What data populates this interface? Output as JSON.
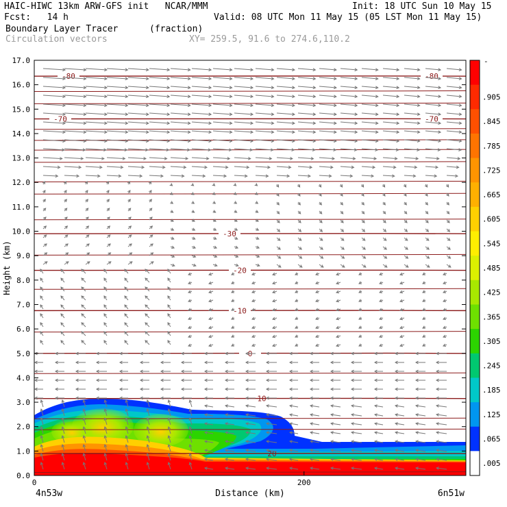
{
  "header": {
    "line1_left": "HAIC-HIWC 13km ARW-GFS init   NCAR/MMM",
    "line1_right": "Init: 18 UTC Sun 10 May 15",
    "line2_left": "Fcst:   14 h",
    "line2_right": "Valid: 08 UTC Mon 11 May 15 (05 LST Mon 11 May 15)",
    "line3_field": "Boundary Layer Tracer",
    "line3_units": "(fraction)",
    "line4_field": "Circulation vectors",
    "line4_xy": "XY= 259.5, 91.6 to 274.6,110.2"
  },
  "chart_data": {
    "type": "contour_cross_section",
    "xlabel": "Distance (km)",
    "ylabel": "Height (km)",
    "x_ticks": [
      "0",
      "200"
    ],
    "x_range_km": [
      0,
      320
    ],
    "y_ticks": [
      "0.0",
      "1.0",
      "2.0",
      "3.0",
      "4.0",
      "5.0",
      "6.0",
      "7.0",
      "8.0",
      "9.0",
      "10.0",
      "11.0",
      "12.0",
      "13.0",
      "14.0",
      "15.0",
      "16.0",
      "17.0"
    ],
    "ylim": [
      0,
      17
    ],
    "endpoint_left": "4n53w",
    "endpoint_right": "6n51w",
    "temperature_contours": [
      {
        "label": "-80",
        "height_km": 16.35
      },
      {
        "label": "-70",
        "height_km": 14.6
      },
      {
        "label": "-30",
        "height_km": 9.9
      },
      {
        "label": "-20",
        "height_km": 8.4
      },
      {
        "label": "-10",
        "height_km": 6.75
      },
      {
        "label": "0",
        "height_km": 5.0
      },
      {
        "label": "10",
        "height_km": 3.15
      },
      {
        "label": "20",
        "height_km": 0.9
      }
    ],
    "colorbar": {
      "top_label": "-",
      "tick_labels": [
        ".905",
        ".845",
        ".785",
        ".725",
        ".665",
        ".605",
        ".545",
        ".485",
        ".425",
        ".365",
        ".305",
        ".245",
        ".185",
        ".125",
        ".065",
        ".005"
      ],
      "colors": [
        "#ff0000",
        "#ff2a00",
        "#ff5000",
        "#ff7400",
        "#ff9400",
        "#ffb000",
        "#ffd000",
        "#ffee00",
        "#dcf000",
        "#a8e800",
        "#6ee000",
        "#2cd400",
        "#00c870",
        "#00c8c8",
        "#0096f0",
        "#0032ff",
        "#ffffff"
      ]
    }
  }
}
